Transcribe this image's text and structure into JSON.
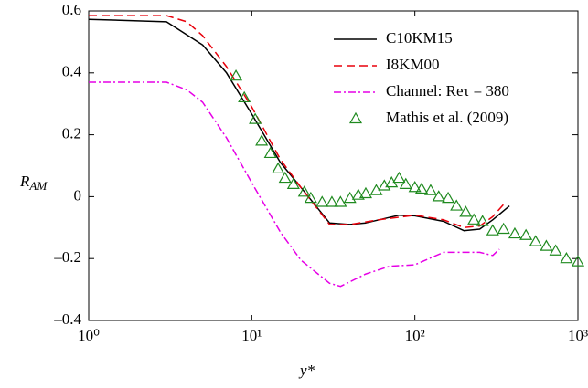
{
  "chart_data": {
    "type": "line",
    "xlabel": "y*",
    "ylabel": [
      "R",
      "AM"
    ],
    "xscale": "log",
    "xlim": [
      1,
      1000
    ],
    "ylim": [
      -0.4,
      0.6
    ],
    "xticks": [
      {
        "value": 1,
        "label": "10⁰"
      },
      {
        "value": 10,
        "label": "10¹"
      },
      {
        "value": 100,
        "label": "10²"
      },
      {
        "value": 1000,
        "label": "10³"
      }
    ],
    "yticks": [
      {
        "value": -0.4,
        "label": "–0.4"
      },
      {
        "value": -0.2,
        "label": "–0.2"
      },
      0,
      0.2,
      0.4,
      0.6
    ],
    "legend": "upper right",
    "series": [
      {
        "name": "C10KM15",
        "color": "#000000",
        "style": "solid",
        "x": [
          1,
          3,
          5,
          7,
          10,
          15,
          20,
          30,
          40,
          50,
          80,
          100,
          150,
          200,
          250,
          300,
          380
        ],
        "values": [
          0.573,
          0.565,
          0.49,
          0.4,
          0.267,
          0.11,
          0.03,
          -0.085,
          -0.09,
          -0.085,
          -0.06,
          -0.062,
          -0.08,
          -0.11,
          -0.105,
          -0.075,
          -0.03
        ]
      },
      {
        "name": "I8KM00",
        "color": "#e8000b",
        "style": "dashed",
        "x": [
          1,
          3,
          4,
          5,
          7,
          10,
          15,
          20,
          30,
          40,
          60,
          100,
          150,
          200,
          250,
          300,
          350
        ],
        "values": [
          0.585,
          0.585,
          0.565,
          0.52,
          0.42,
          0.29,
          0.12,
          0.03,
          -0.09,
          -0.09,
          -0.075,
          -0.06,
          -0.075,
          -0.1,
          -0.095,
          -0.065,
          -0.025
        ]
      },
      {
        "name": "Channel: Reτ = 380",
        "color": "#e600e6",
        "style": "dashdot",
        "x": [
          1,
          3,
          4,
          5,
          7,
          10,
          15,
          20,
          30,
          35,
          50,
          70,
          100,
          150,
          200,
          250,
          300,
          330
        ],
        "values": [
          0.37,
          0.37,
          0.345,
          0.305,
          0.19,
          0.045,
          -0.115,
          -0.205,
          -0.28,
          -0.29,
          -0.25,
          -0.225,
          -0.22,
          -0.18,
          -0.18,
          -0.18,
          -0.19,
          -0.17
        ]
      },
      {
        "name": "Mathis et al. (2009)",
        "color": "#1f8a1f",
        "style": "triangle",
        "x": [
          8,
          9,
          10.5,
          11.5,
          13,
          14.5,
          16,
          18,
          21,
          23,
          27,
          31,
          35,
          40,
          45,
          50,
          58,
          65,
          72,
          80,
          88,
          100,
          110,
          125,
          140,
          160,
          180,
          205,
          230,
          260,
          300,
          350,
          410,
          480,
          550,
          640,
          730,
          850,
          1000
        ],
        "values": [
          0.39,
          0.32,
          0.25,
          0.18,
          0.14,
          0.09,
          0.06,
          0.04,
          0.015,
          -0.005,
          -0.018,
          -0.018,
          -0.018,
          -0.005,
          0.005,
          0.01,
          0.02,
          0.035,
          0.045,
          0.06,
          0.04,
          0.03,
          0.025,
          0.02,
          0.0,
          -0.005,
          -0.03,
          -0.05,
          -0.075,
          -0.08,
          -0.11,
          -0.105,
          -0.12,
          -0.125,
          -0.145,
          -0.16,
          -0.175,
          -0.2,
          -0.21
        ]
      }
    ]
  }
}
